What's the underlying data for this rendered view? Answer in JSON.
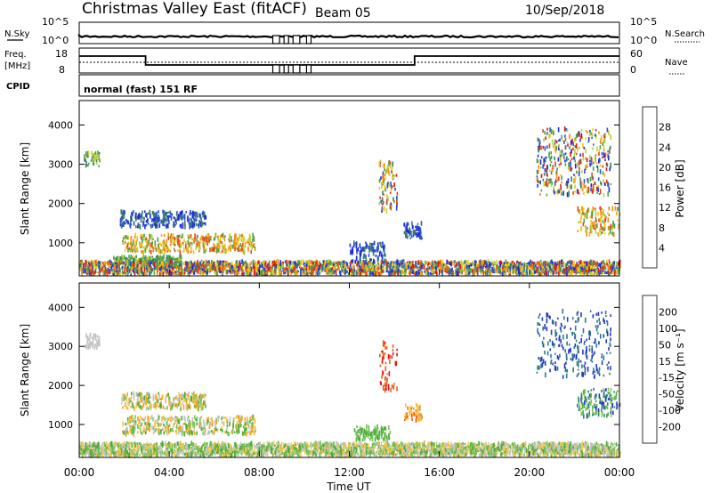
{
  "header": {
    "title": "Christmas Valley East (fitACF)",
    "beam": "Beam 05",
    "date": "10/Sep/2018"
  },
  "top_panels": {
    "nsky": {
      "label": "N.Sky",
      "ticks": [
        "10^5",
        "10^0"
      ],
      "right_ticks": [
        "10^5",
        "10^0"
      ],
      "right_label": "N.Search"
    },
    "freq": {
      "label": "Freq.",
      "units": "[MHz]",
      "ticks": [
        "18",
        "8"
      ],
      "right_ticks": [
        "60",
        "0"
      ],
      "right_label": "Nave"
    },
    "cpid": {
      "label": "CPID",
      "value": "normal (fast) 151 RF"
    }
  },
  "colors": {
    "power": [
      "#1c2bd6",
      "#2a54c8",
      "#3b8069",
      "#4ca24c",
      "#b9d23e",
      "#f2c414",
      "#f08a10",
      "#e2441a",
      "#d11a1a"
    ],
    "velocity": [
      "#e4141a",
      "#f05c14",
      "#f0a020",
      "#f5c44a",
      "#c4c4c4",
      "#7ac45a",
      "#4caa3c",
      "#2c7a8a",
      "#2638c0"
    ]
  },
  "chart_data": [
    {
      "type": "heatmap",
      "name": "power",
      "x_ticks": [
        "00:00",
        "04:00",
        "08:00",
        "12:00",
        "16:00",
        "20:00",
        "00:00"
      ],
      "xlabel": "Time UT",
      "ylabel": "Slant Range [km]",
      "y_ticks": [
        "1000",
        "2000",
        "3000",
        "4000"
      ],
      "xlim": [
        0,
        24
      ],
      "ylim": [
        180,
        4600
      ],
      "colorbar": {
        "label": "Power [dB]",
        "ticks": [
          "4",
          "8",
          "12",
          "16",
          "20",
          "24",
          "28"
        ],
        "range": [
          0,
          32
        ]
      },
      "regions": [
        {
          "t": [
            0.2,
            0.9
          ],
          "r": [
            2950,
            3300
          ],
          "level": "mid"
        },
        {
          "t": [
            1.8,
            5.6
          ],
          "r": [
            1400,
            1800
          ],
          "level": "low"
        },
        {
          "t": [
            1.9,
            7.8
          ],
          "r": [
            750,
            1200
          ],
          "level": "high"
        },
        {
          "t": [
            1.5,
            4.5
          ],
          "r": [
            450,
            650
          ],
          "level": "mid"
        },
        {
          "t": [
            0.0,
            24.0
          ],
          "r": [
            200,
            520
          ],
          "level": "mixed"
        },
        {
          "t": [
            12.0,
            13.6
          ],
          "r": [
            500,
            1000
          ],
          "level": "low"
        },
        {
          "t": [
            13.3,
            14.1
          ],
          "r": [
            1800,
            3100
          ],
          "level": "mixed"
        },
        {
          "t": [
            14.4,
            15.2
          ],
          "r": [
            1100,
            1500
          ],
          "level": "low"
        },
        {
          "t": [
            20.3,
            23.6
          ],
          "r": [
            2200,
            3900
          ],
          "level": "mixed"
        },
        {
          "t": [
            22.1,
            24.0
          ],
          "r": [
            1200,
            1900
          ],
          "level": "high"
        }
      ]
    },
    {
      "type": "heatmap",
      "name": "velocity",
      "x_ticks": [
        "00:00",
        "04:00",
        "08:00",
        "12:00",
        "16:00",
        "20:00",
        "00:00"
      ],
      "xlabel": "Time UT",
      "ylabel": "Slant Range [km]",
      "y_ticks": [
        "1000",
        "2000",
        "3000",
        "4000"
      ],
      "xlim": [
        0,
        24
      ],
      "ylim": [
        180,
        4600
      ],
      "colorbar": {
        "label": "Velocity [m s⁻¹]",
        "ticks": [
          "-200",
          "-100",
          "-50",
          "-15",
          "15",
          "50",
          "100",
          "200"
        ],
        "range": [
          -250,
          250
        ]
      },
      "regions": [
        {
          "t": [
            0.2,
            0.9
          ],
          "r": [
            2950,
            3300
          ],
          "level": "grey"
        },
        {
          "t": [
            1.8,
            5.6
          ],
          "r": [
            1400,
            1800
          ],
          "level": "greenorange"
        },
        {
          "t": [
            1.9,
            7.8
          ],
          "r": [
            750,
            1200
          ],
          "level": "greenorange"
        },
        {
          "t": [
            0.0,
            24.0
          ],
          "r": [
            200,
            520
          ],
          "level": "groundgreen"
        },
        {
          "t": [
            13.3,
            14.1
          ],
          "r": [
            1800,
            3100
          ],
          "level": "red"
        },
        {
          "t": [
            14.4,
            15.2
          ],
          "r": [
            1100,
            1500
          ],
          "level": "orange"
        },
        {
          "t": [
            12.2,
            13.8
          ],
          "r": [
            600,
            950
          ],
          "level": "green"
        },
        {
          "t": [
            20.3,
            23.6
          ],
          "r": [
            2200,
            3900
          ],
          "level": "blue"
        },
        {
          "t": [
            22.1,
            24.0
          ],
          "r": [
            1200,
            1900
          ],
          "level": "bluegreen"
        }
      ]
    }
  ]
}
